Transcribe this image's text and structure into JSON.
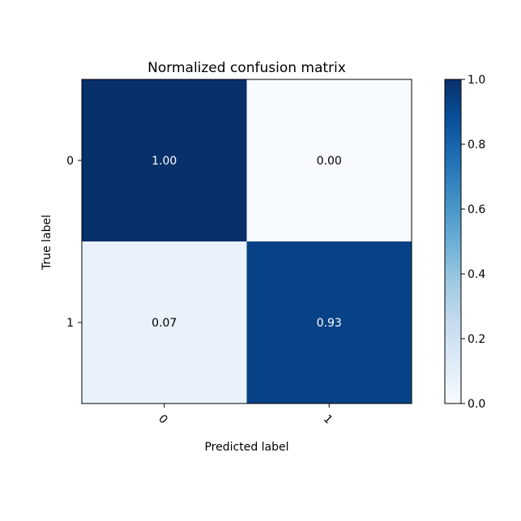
{
  "chart_data": {
    "type": "heatmap",
    "title": "Normalized confusion matrix",
    "xlabel": "Predicted label",
    "ylabel": "True label",
    "x_categories": [
      "0",
      "1"
    ],
    "y_categories": [
      "0",
      "1"
    ],
    "values": [
      [
        1.0,
        0.0
      ],
      [
        0.07,
        0.93
      ]
    ],
    "cell_labels": [
      [
        "1.00",
        "0.00"
      ],
      [
        "0.07",
        "0.93"
      ]
    ],
    "colormap": "Blues",
    "colormap_colors": [
      "#f7fbff",
      "#deebf7",
      "#c6dbef",
      "#9ecae1",
      "#6baed6",
      "#4292c6",
      "#2171b5",
      "#08519c",
      "#08306b"
    ],
    "text_colors": {
      "light": "#ffffff",
      "dark": "#000000"
    },
    "colorbar": {
      "range": [
        0.0,
        1.0
      ],
      "ticks": [
        0.0,
        0.2,
        0.4,
        0.6,
        0.8,
        1.0
      ],
      "tick_labels": [
        "0.0",
        "0.2",
        "0.4",
        "0.6",
        "0.8",
        "1.0"
      ]
    },
    "x_tick_rotation": 45,
    "grid": false
  }
}
